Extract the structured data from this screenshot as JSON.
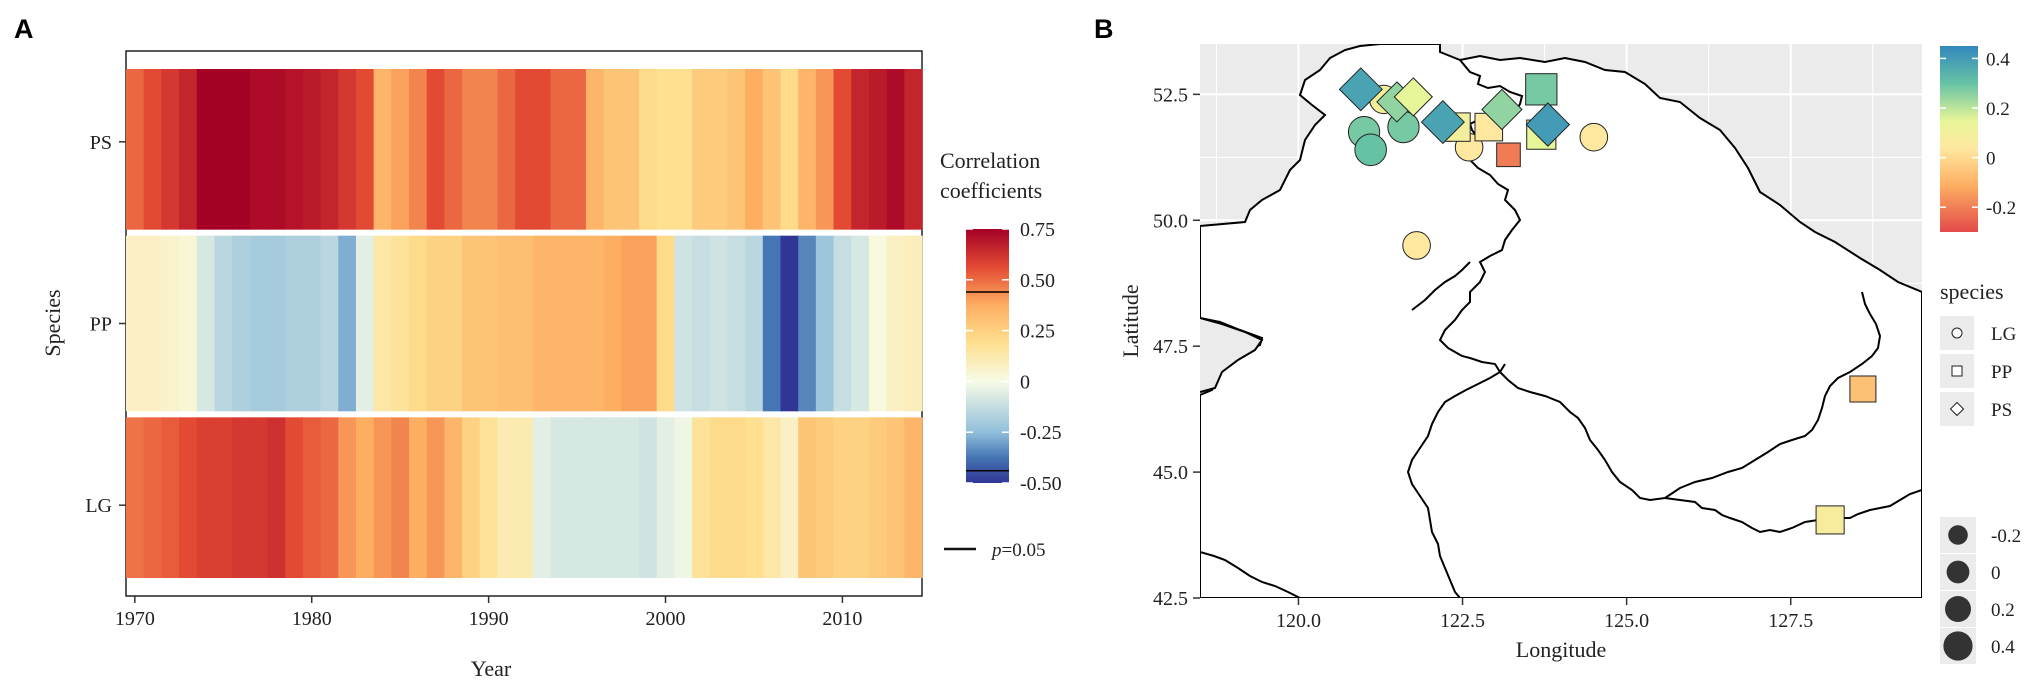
{
  "panels": {
    "a": "A",
    "b": "B"
  },
  "chart_data": [
    {
      "type": "heatmap",
      "panel": "A",
      "xlabel": "Year",
      "ylabel": "Species",
      "x_ticks": [
        "1970",
        "1980",
        "1990",
        "2000",
        "2010"
      ],
      "x_tick_values": [
        1970,
        1980,
        1990,
        2000,
        2010
      ],
      "xlim": [
        1969.5,
        2014.5
      ],
      "years": [
        1970,
        1971,
        1972,
        1973,
        1974,
        1975,
        1976,
        1977,
        1978,
        1979,
        1980,
        1981,
        1982,
        1983,
        1984,
        1985,
        1986,
        1987,
        1988,
        1989,
        1990,
        1991,
        1992,
        1993,
        1994,
        1995,
        1996,
        1997,
        1998,
        1999,
        2000,
        2001,
        2002,
        2003,
        2004,
        2005,
        2006,
        2007,
        2008,
        2009,
        2010,
        2011,
        2012,
        2013,
        2014
      ],
      "species": [
        "PS",
        "PP",
        "LG"
      ],
      "series": [
        {
          "name": "PS",
          "values": [
            0.5,
            0.55,
            0.6,
            0.65,
            0.75,
            0.75,
            0.75,
            0.72,
            0.72,
            0.7,
            0.68,
            0.65,
            0.6,
            0.55,
            0.35,
            0.4,
            0.45,
            0.55,
            0.5,
            0.45,
            0.45,
            0.5,
            0.55,
            0.55,
            0.5,
            0.5,
            0.35,
            0.3,
            0.3,
            0.22,
            0.2,
            0.2,
            0.28,
            0.28,
            0.3,
            0.38,
            0.3,
            0.22,
            0.35,
            0.42,
            0.55,
            0.65,
            0.68,
            0.72,
            0.65
          ]
        },
        {
          "name": "PP",
          "values": [
            0.08,
            0.08,
            0.06,
            0.04,
            -0.08,
            -0.15,
            -0.18,
            -0.2,
            -0.2,
            -0.18,
            -0.18,
            -0.15,
            -0.28,
            -0.05,
            0.15,
            0.18,
            0.22,
            0.25,
            0.25,
            0.3,
            0.3,
            0.32,
            0.32,
            0.35,
            0.35,
            0.35,
            0.35,
            0.38,
            0.4,
            0.4,
            0.22,
            -0.1,
            -0.12,
            -0.1,
            -0.12,
            -0.15,
            -0.38,
            -0.5,
            -0.35,
            -0.22,
            -0.12,
            -0.08,
            0.02,
            0.08,
            0.1
          ]
        },
        {
          "name": "LG",
          "values": [
            0.48,
            0.5,
            0.52,
            0.55,
            0.58,
            0.58,
            0.6,
            0.6,
            0.62,
            0.55,
            0.52,
            0.5,
            0.42,
            0.38,
            0.42,
            0.45,
            0.38,
            0.42,
            0.35,
            0.25,
            0.18,
            0.12,
            0.12,
            -0.05,
            -0.08,
            -0.08,
            -0.08,
            -0.08,
            -0.08,
            -0.1,
            -0.05,
            -0.02,
            0.18,
            0.22,
            0.22,
            0.2,
            0.15,
            0.08,
            0.3,
            0.28,
            0.25,
            0.25,
            0.28,
            0.3,
            0.35
          ]
        }
      ],
      "colorbar": {
        "title_lines": [
          "Correlation",
          "coefficients"
        ],
        "min": -0.5,
        "max": 0.75,
        "ticks": [
          "0.75",
          "0.50",
          "0.25",
          "0",
          "-0.25",
          "-0.50"
        ],
        "tick_values": [
          0.75,
          0.5,
          0.25,
          0,
          -0.25,
          -0.5
        ],
        "significance_lines": [
          0.44,
          -0.44
        ]
      },
      "significance_legend": {
        "p_label": "p",
        "value_label": "=0.05"
      }
    },
    {
      "type": "scatter",
      "panel": "B",
      "xlabel": "Longitude",
      "ylabel": "Latitude",
      "xlim": [
        118.5,
        129.5
      ],
      "ylim": [
        42.5,
        53.5
      ],
      "x_ticks": [
        "120.0",
        "122.5",
        "125.0",
        "127.5"
      ],
      "x_tick_values": [
        120.0,
        122.5,
        125.0,
        127.5
      ],
      "y_ticks": [
        "42.5",
        "45.0",
        "47.5",
        "50.0",
        "52.5"
      ],
      "y_tick_values": [
        42.5,
        45.0,
        47.5,
        50.0,
        52.5
      ],
      "color_legend": {
        "min": -0.3,
        "max": 0.45,
        "ticks": [
          "0.4",
          "0.2",
          "0",
          "-0.2"
        ],
        "tick_values": [
          0.4,
          0.2,
          0,
          -0.2
        ]
      },
      "shape_legend": {
        "title": "species",
        "items": [
          {
            "label": "LG",
            "shape": "circle"
          },
          {
            "label": "PP",
            "shape": "square"
          },
          {
            "label": "PS",
            "shape": "diamond"
          }
        ]
      },
      "size_legend": {
        "items": [
          {
            "label": "-0.2",
            "value": -0.2
          },
          {
            "label": "0",
            "value": 0
          },
          {
            "label": "0.2",
            "value": 0.2
          },
          {
            "label": "0.4",
            "value": 0.4
          }
        ]
      },
      "points": [
        {
          "species": "LG",
          "lon": 121.3,
          "lat": 52.4,
          "value": 0.1
        },
        {
          "species": "LG",
          "lon": 121.0,
          "lat": 51.75,
          "value": 0.28
        },
        {
          "species": "LG",
          "lon": 121.6,
          "lat": 51.85,
          "value": 0.28
        },
        {
          "species": "LG",
          "lon": 121.1,
          "lat": 51.4,
          "value": 0.3
        },
        {
          "species": "LG",
          "lon": 122.3,
          "lat": 51.85,
          "value": 0.1
        },
        {
          "species": "LG",
          "lon": 122.6,
          "lat": 51.45,
          "value": 0.05
        },
        {
          "species": "LG",
          "lon": 124.5,
          "lat": 51.65,
          "value": 0.05
        },
        {
          "species": "LG",
          "lon": 121.8,
          "lat": 49.5,
          "value": 0.05
        },
        {
          "species": "PP",
          "lon": 122.4,
          "lat": 51.85,
          "value": 0.1
        },
        {
          "species": "PP",
          "lon": 122.9,
          "lat": 51.85,
          "value": 0.05
        },
        {
          "species": "PP",
          "lon": 123.2,
          "lat": 51.3,
          "value": -0.2
        },
        {
          "species": "PP",
          "lon": 123.7,
          "lat": 52.6,
          "value": 0.28
        },
        {
          "species": "PP",
          "lon": 123.7,
          "lat": 51.7,
          "value": 0.15
        },
        {
          "species": "PP",
          "lon": 128.6,
          "lat": 46.65,
          "value": -0.05
        },
        {
          "species": "PP",
          "lon": 128.1,
          "lat": 44.05,
          "value": 0.08
        },
        {
          "species": "PS",
          "lon": 120.95,
          "lat": 52.6,
          "value": 0.38
        },
        {
          "species": "PS",
          "lon": 121.5,
          "lat": 52.35,
          "value": 0.25
        },
        {
          "species": "PS",
          "lon": 121.75,
          "lat": 52.45,
          "value": 0.15
        },
        {
          "species": "PS",
          "lon": 122.2,
          "lat": 51.95,
          "value": 0.38
        },
        {
          "species": "PS",
          "lon": 123.1,
          "lat": 52.2,
          "value": 0.25
        },
        {
          "species": "PS",
          "lon": 123.8,
          "lat": 51.9,
          "value": 0.4
        }
      ]
    }
  ]
}
